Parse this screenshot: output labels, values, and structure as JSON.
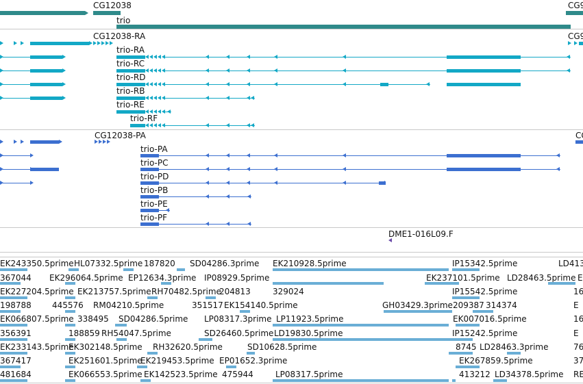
{
  "colors": {
    "gene": "#2f8a8a",
    "tx_a": "#13a8c6",
    "tx_b": "#3c6fd0",
    "est": "#6aaed6",
    "clone": "#6a4aa8"
  },
  "genes": {
    "label1": "CG12038",
    "label2": "trio",
    "label3": "CG9"
  },
  "transcripts_a": {
    "label0": "CG12038-RA",
    "labels": [
      "trio-RA",
      "trio-RC",
      "trio-RD",
      "trio-RB",
      "trio-RE",
      "trio-RF"
    ],
    "right_label": "CG9"
  },
  "transcripts_b": {
    "label0": "CG12038-PA",
    "labels": [
      "trio-PA",
      "trio-PC",
      "trio-PD",
      "trio-PB",
      "trio-PE",
      "trio-PF"
    ],
    "right_label": "CG"
  },
  "clone": {
    "label": "DME1-016L09.F"
  },
  "ests": [
    [
      "EK243350.5prime",
      "HL07332.5prime",
      "187820",
      "SD04286.3prime",
      "EK210928.5prime",
      "IP15342.5prime",
      "LD413"
    ],
    [
      "367044",
      "EK296064.5prime",
      "EP12634.3prime",
      "IP08929.5prime",
      "EK237101.5prime",
      "LD28463.5prime",
      "E"
    ],
    [
      "EK227204.5prime",
      "EK213757.5prime",
      "RH70482.5prime",
      "204813",
      "329024",
      "IP15542.5prime",
      "16"
    ],
    [
      "198788",
      "445576",
      "RM04210.5prime",
      "351517",
      "EK154140.5prime",
      "GH03429.3prime",
      "209387",
      "314374",
      "E"
    ],
    [
      "EK066807.5prime",
      "338495",
      "SD04286.5prime",
      "LP08317.3prime",
      "LP11923.5prime",
      "EK007016.5prime",
      "16"
    ],
    [
      "356391",
      "188859",
      "RH54047.5prime",
      "SD26460.5prime",
      "LD19830.5prime",
      "IP15242.5prime",
      "E"
    ],
    [
      "EK233143.5prime",
      "EK302148.5prime",
      "RH32620.5prime",
      "SD10628.5prime",
      "8745",
      "LD28463.3prime",
      "76"
    ],
    [
      "367417",
      "EK251601.5prime",
      "EK219453.5prime",
      "EP01652.3prime",
      "EK267859.5prime",
      "37"
    ],
    [
      "481684",
      "EK066553.5prime",
      "EK142523.5prime",
      "475944",
      "LP08317.5prime",
      "413212",
      "LD34378.5prime",
      "RE"
    ]
  ]
}
